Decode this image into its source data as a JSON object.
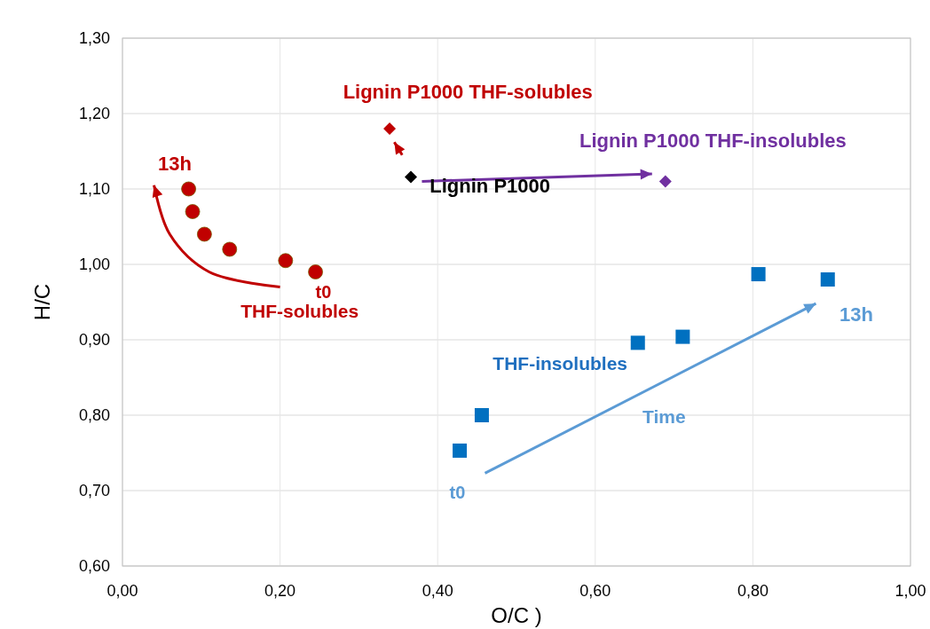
{
  "chart_data": {
    "type": "scatter",
    "xlabel": "O/C )",
    "ylabel": "H/C",
    "xlim": [
      0,
      1
    ],
    "xticks": [
      {
        "value": 0,
        "label": "0,00"
      },
      {
        "value": 0.2,
        "label": "0,20"
      },
      {
        "value": 0.4,
        "label": "0,40"
      },
      {
        "value": 0.6,
        "label": "0,60"
      },
      {
        "value": 0.8,
        "label": "0,80"
      },
      {
        "value": 1,
        "label": "1,00"
      }
    ],
    "ylim": [
      0.6,
      1.3
    ],
    "yticks": [
      {
        "value": 0.6,
        "label": "0,60"
      },
      {
        "value": 0.7,
        "label": "0,70"
      },
      {
        "value": 0.8,
        "label": "0,80"
      },
      {
        "value": 0.9,
        "label": "0,90"
      },
      {
        "value": 1.0,
        "label": "1,00"
      },
      {
        "value": 1.1,
        "label": "1,10"
      },
      {
        "value": 1.2,
        "label": "1,20"
      },
      {
        "value": 1.3,
        "label": "1,30"
      }
    ],
    "grid": true,
    "series": [
      {
        "marker": "circle",
        "color": "#c00000",
        "x": [
          0.084,
          0.089,
          0.104,
          0.136,
          0.207,
          0.245
        ],
        "values": [
          1.1,
          1.07,
          1.04,
          1.02,
          1.005,
          0.99
        ]
      },
      {
        "marker": "square",
        "color": "#0070c0",
        "x": [
          0.428,
          0.456,
          0.654,
          0.711,
          0.807,
          0.895
        ],
        "values": [
          0.753,
          0.8,
          0.896,
          0.904,
          0.987,
          0.98
        ]
      },
      {
        "name": "Lignin P1000",
        "marker": "diamond",
        "color": "#000000",
        "x": [
          0.366
        ],
        "values": [
          1.116
        ]
      },
      {
        "name": "Lignin P1000 THF-solubles",
        "marker": "diamond",
        "color": "#c00000",
        "x": [
          0.339
        ],
        "values": [
          1.18
        ]
      },
      {
        "name": "Lignin P1000 THF-insolubles",
        "marker": "diamond",
        "color": "#7030a0",
        "x": [
          0.689
        ],
        "values": [
          1.11
        ]
      }
    ],
    "annotations": [
      "13h",
      "t0",
      "THF-solubles",
      "THF-insolubles",
      "Time",
      "13h",
      "t0"
    ]
  }
}
